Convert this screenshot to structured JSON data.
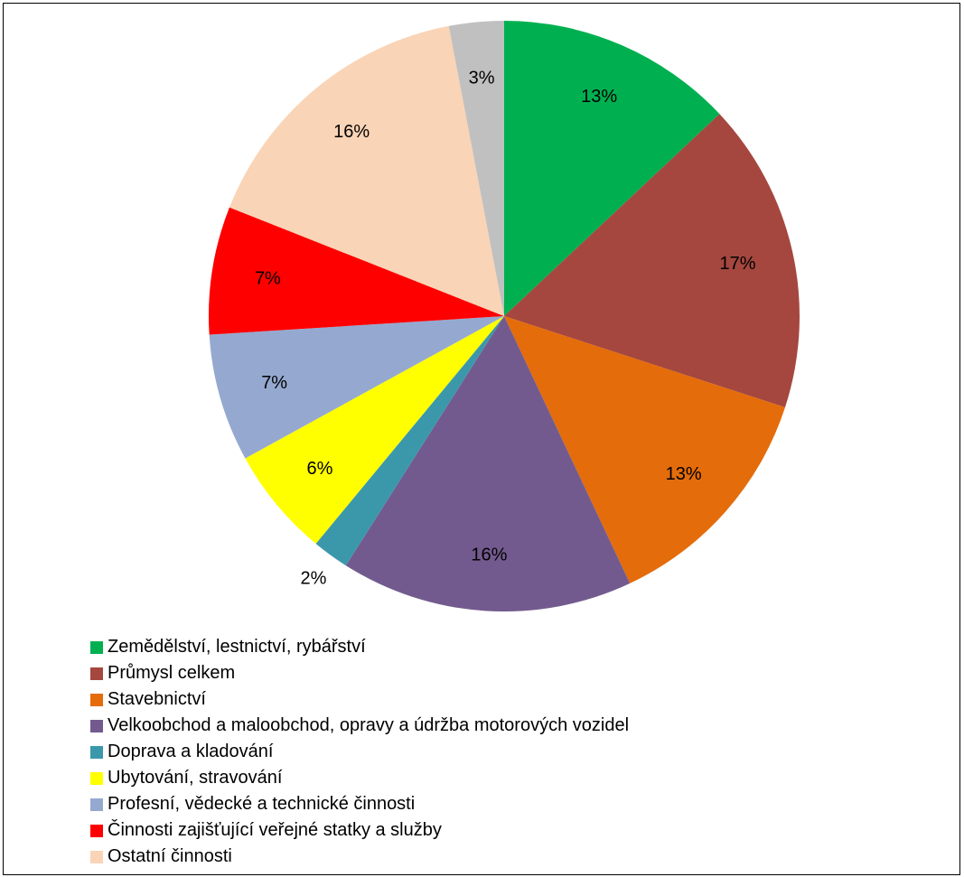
{
  "chart_data": {
    "type": "pie",
    "start_angle_deg": 0,
    "direction": "clockwise",
    "slices": [
      {
        "label": "Zemědělství, lestnictví, rybářství",
        "value": 13,
        "value_label": "13%",
        "color": "#00B050"
      },
      {
        "label": "Průmysl celkem",
        "value": 17,
        "value_label": "17%",
        "color": "#A5473F"
      },
      {
        "label": "Stavebnictví",
        "value": 13,
        "value_label": "13%",
        "color": "#E46C0A"
      },
      {
        "label": "Velkoobchod a maloobchod, opravy a údržba motorových vozidel",
        "value": 16,
        "value_label": "16%",
        "color": "#735A8E"
      },
      {
        "label": "Doprava a kladování",
        "value": 2,
        "value_label": "2%",
        "color": "#3B98AB"
      },
      {
        "label": "Ubytování, stravování",
        "value": 6,
        "value_label": "6%",
        "color": "#FFFF00"
      },
      {
        "label": "Profesní, vědecké a technické činnosti",
        "value": 7,
        "value_label": "7%",
        "color": "#95A9D0"
      },
      {
        "label": "Činnosti zajišťující veřejné statky a služby",
        "value": 7,
        "value_label": "7%",
        "color": "#FF0000"
      },
      {
        "label": "Ostatní činnosti",
        "value": 16,
        "value_label": "16%",
        "color": "#FAD4B6"
      },
      {
        "label": "",
        "value": 3,
        "value_label": "3%",
        "color": "#C0C0C0"
      }
    ],
    "legend_position": "bottom-left"
  }
}
